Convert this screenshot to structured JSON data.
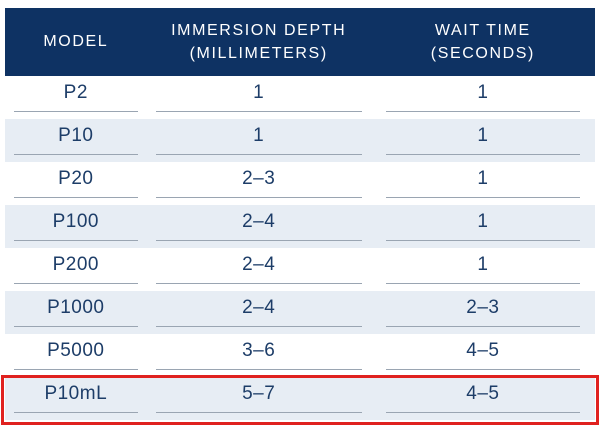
{
  "header": {
    "model": "MODEL",
    "depth_line1": "IMMERSION DEPTH",
    "depth_line2": "(MILLIMETERS)",
    "wait_line1": "WAIT TIME",
    "wait_line2": "(SECONDS)"
  },
  "rows": [
    {
      "model": "P2",
      "depth": "1",
      "wait": "1"
    },
    {
      "model": "P10",
      "depth": "1",
      "wait": "1"
    },
    {
      "model": "P20",
      "depth": "2–3",
      "wait": "1"
    },
    {
      "model": "P100",
      "depth": "2–4",
      "wait": "1"
    },
    {
      "model": "P200",
      "depth": "2–4",
      "wait": "1"
    },
    {
      "model": "P1000",
      "depth": "2–4",
      "wait": "2–3"
    },
    {
      "model": "P5000",
      "depth": "3–6",
      "wait": "4–5"
    },
    {
      "model": "P10mL",
      "depth": "5–7",
      "wait": "4–5"
    }
  ],
  "highlighted_row": "P10mL",
  "colors": {
    "header_bg": "#0e3263",
    "alt_row_bg": "#e7edf4",
    "body_text": "#1d3d68",
    "underline": "#9aa5b2",
    "highlight_border": "#e0211f"
  }
}
